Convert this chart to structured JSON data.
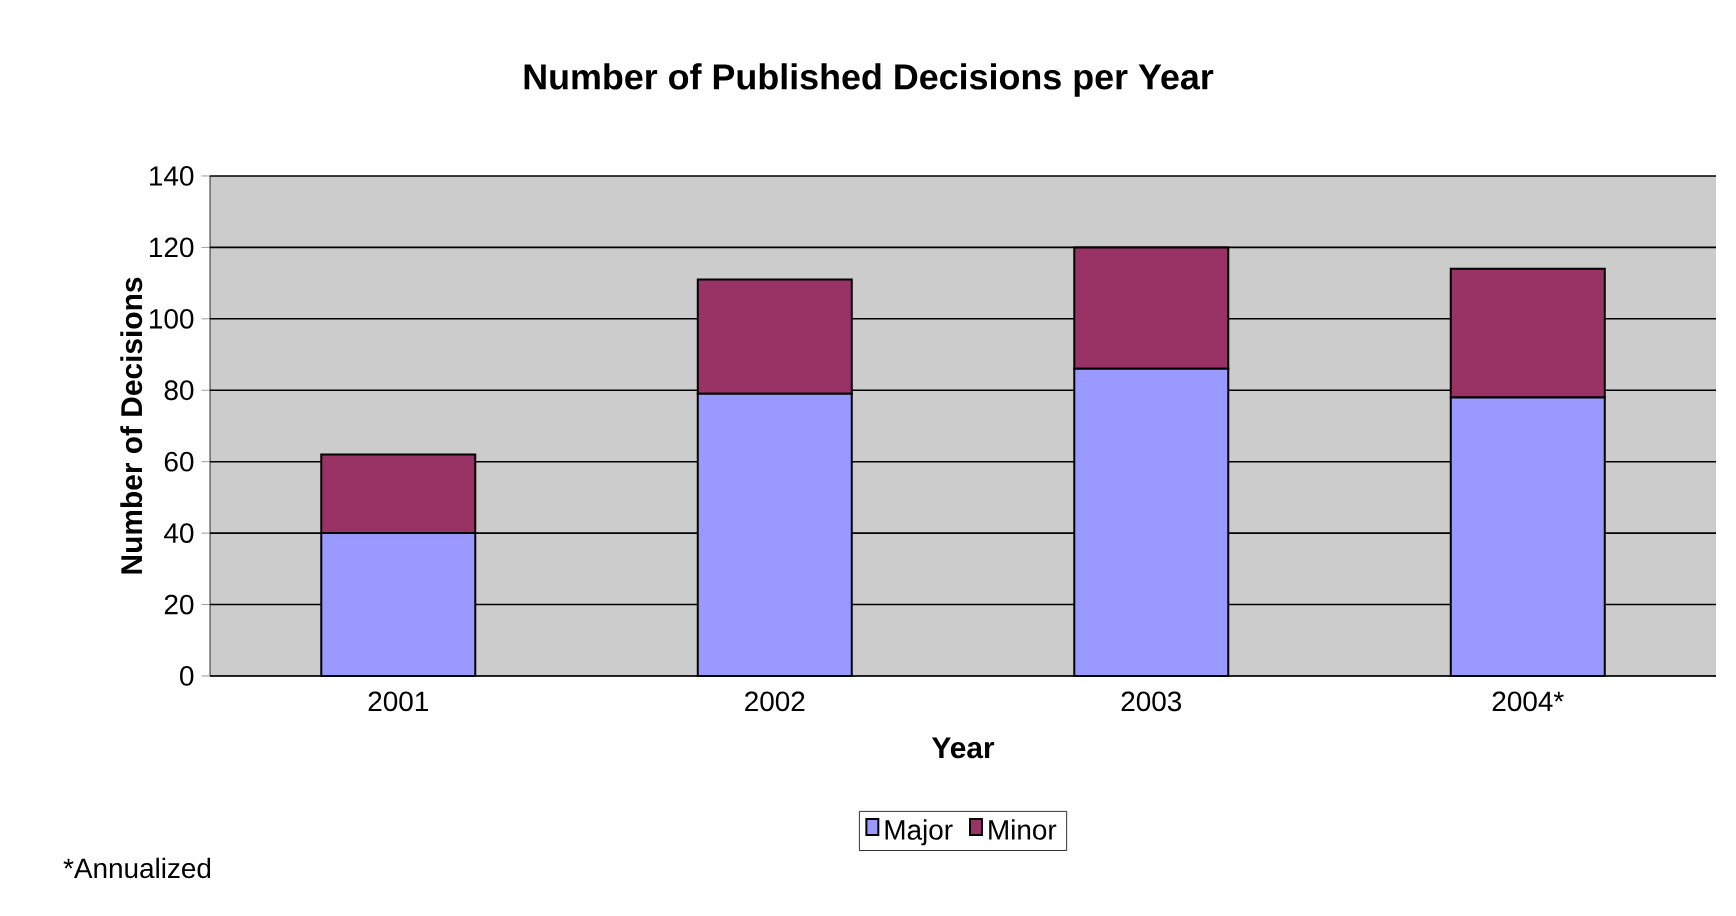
{
  "chart_data": {
    "type": "bar",
    "stacked": true,
    "title": "Number of Published Decisions per Year",
    "xlabel": "Year",
    "ylabel": "Number of Decisions",
    "categories": [
      "2001",
      "2002",
      "2003",
      "2004*"
    ],
    "series": [
      {
        "name": "Major",
        "color": "#9999ff",
        "values": [
          40,
          79,
          86,
          78
        ]
      },
      {
        "name": "Minor",
        "color": "#993366",
        "values": [
          22,
          32,
          34,
          36
        ]
      }
    ],
    "ylim": [
      0,
      140
    ],
    "yticks": [
      0,
      20,
      40,
      60,
      80,
      100,
      120,
      140
    ],
    "grid": "y",
    "legend": "bottom",
    "annotations": [
      "*Annualized"
    ]
  }
}
